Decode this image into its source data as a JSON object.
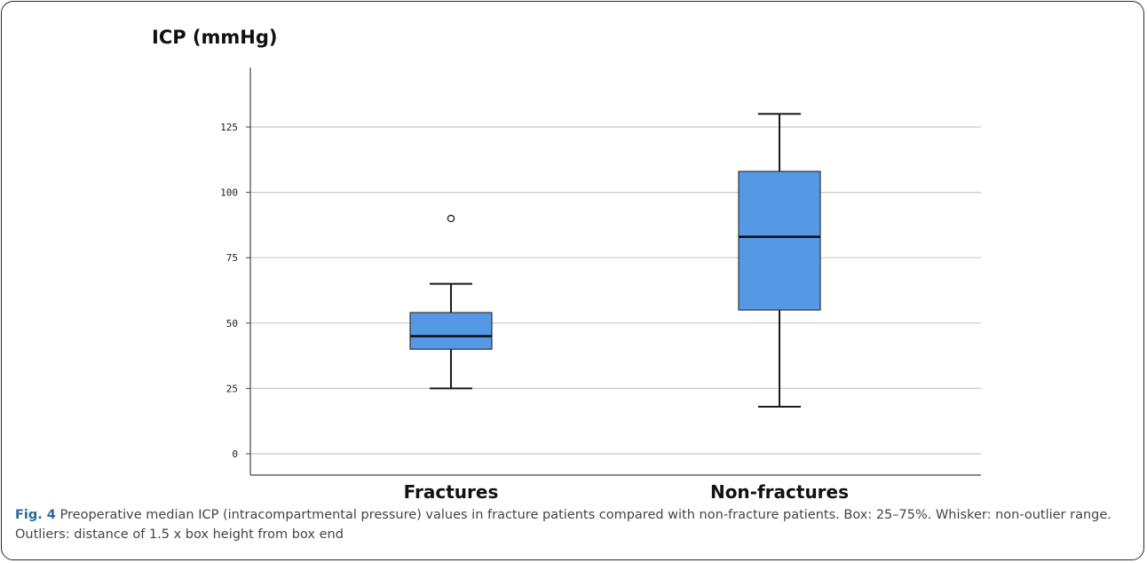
{
  "figure": {
    "label": "Fig. 4",
    "caption": "Preoperative median ICP (intracompartmental pressure) values in fracture patients compared with non-fracture patients. Box: 25–75%. Whisker: non-outlier range. Outliers: distance of 1.5 x box height from box end"
  },
  "colors": {
    "box_fill": "#5599e6",
    "stroke": "#1a1a1a",
    "grid": "#c8c8c8"
  },
  "chart_data": {
    "type": "box",
    "ylabel": "ICP (mmHg)",
    "xlabel": "",
    "ylim": [
      -8,
      150
    ],
    "yticks": [
      0,
      25,
      50,
      75,
      100,
      125
    ],
    "grid": true,
    "categories": [
      "Fractures",
      "Non-fractures"
    ],
    "boxes": [
      {
        "category": "Fractures",
        "whisker_low": 25,
        "q1": 40,
        "median": 45,
        "q3": 54,
        "whisker_high": 65,
        "outliers": [
          90
        ]
      },
      {
        "category": "Non-fractures",
        "whisker_low": 18,
        "q1": 55,
        "median": 83,
        "q3": 108,
        "whisker_high": 130,
        "outliers": []
      }
    ]
  }
}
